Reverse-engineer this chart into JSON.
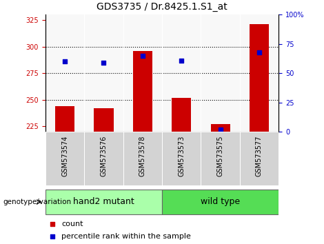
{
  "title": "GDS3735 / Dr.8425.1.S1_at",
  "samples": [
    "GSM573574",
    "GSM573576",
    "GSM573578",
    "GSM573573",
    "GSM573575",
    "GSM573577"
  ],
  "counts": [
    244,
    242,
    296,
    252,
    227,
    321
  ],
  "percentiles": [
    60,
    59,
    65,
    61,
    2,
    68
  ],
  "ylim_left": [
    220,
    330
  ],
  "ylim_right": [
    0,
    100
  ],
  "yticks_left": [
    225,
    250,
    275,
    300,
    325
  ],
  "yticks_right": [
    0,
    25,
    50,
    75,
    100
  ],
  "ytick_right_labels": [
    "0",
    "25",
    "50",
    "75",
    "100%"
  ],
  "bar_color": "#cc0000",
  "dot_color": "#0000cc",
  "bar_bottom": 220,
  "groups": [
    {
      "label": "hand2 mutant",
      "start": 0,
      "end": 2,
      "color": "#aaffaa"
    },
    {
      "label": "wild type",
      "start": 3,
      "end": 5,
      "color": "#55dd55"
    }
  ],
  "group_label": "genotype/variation",
  "legend_count_label": "count",
  "legend_percentile_label": "percentile rank within the sample",
  "plot_bg": "#f8f8f8",
  "tickarea_bg": "#d3d3d3",
  "grid_color": "#000000",
  "title_fontsize": 10,
  "tick_fontsize": 7,
  "sample_fontsize": 7,
  "group_fontsize": 9
}
